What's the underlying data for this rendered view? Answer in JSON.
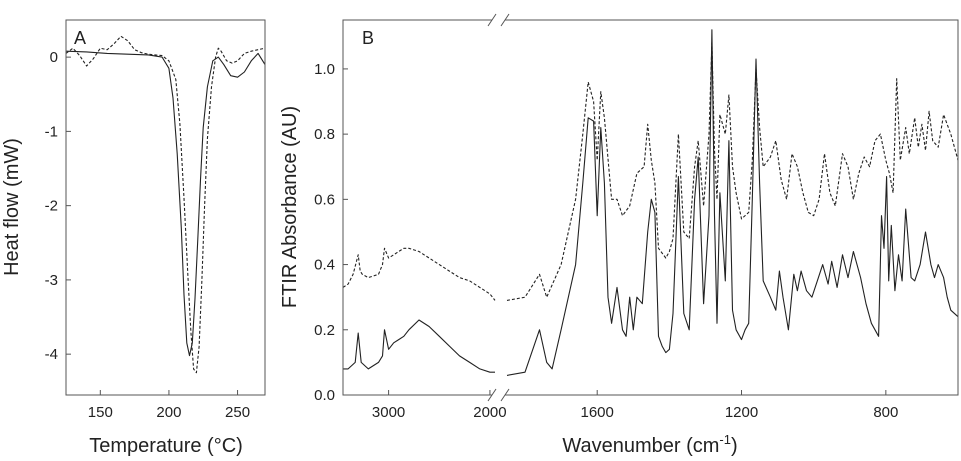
{
  "chart_data": [
    {
      "panel": "A",
      "type": "line",
      "xlabel": "Temperature (°C)",
      "ylabel": "Heat flow (mW)",
      "xlim": [
        125,
        270
      ],
      "ylim": [
        -4.55,
        0.5
      ],
      "xticks": [
        150,
        200,
        250
      ],
      "yticks": [
        0,
        -1,
        -2,
        -3,
        -4
      ],
      "grid": false,
      "series": [
        {
          "style": "solid",
          "x": [
            125,
            140,
            155,
            170,
            185,
            195,
            200,
            203,
            206,
            209,
            211,
            213,
            215,
            217,
            219,
            221,
            223,
            225,
            228,
            232,
            236,
            240,
            245,
            250,
            255,
            260,
            265,
            270
          ],
          "y": [
            0.08,
            0.07,
            0.05,
            0.04,
            0.03,
            0.0,
            -0.15,
            -0.55,
            -1.3,
            -2.3,
            -3.2,
            -3.85,
            -4.02,
            -3.85,
            -3.25,
            -2.45,
            -1.65,
            -0.95,
            -0.4,
            -0.05,
            0.0,
            -0.1,
            -0.25,
            -0.27,
            -0.2,
            -0.05,
            0.05,
            -0.1
          ]
        },
        {
          "style": "dashed",
          "x": [
            125,
            130,
            135,
            140,
            145,
            150,
            155,
            160,
            165,
            170,
            175,
            180,
            185,
            190,
            195,
            200,
            205,
            208,
            211,
            214,
            216,
            218,
            220,
            222,
            224,
            226,
            228,
            231,
            234,
            236,
            238,
            242,
            246,
            250,
            255,
            260,
            265,
            270
          ],
          "y": [
            0.05,
            0.12,
            0.02,
            -0.12,
            -0.02,
            0.12,
            0.1,
            0.18,
            0.28,
            0.22,
            0.1,
            0.06,
            0.04,
            0.03,
            0.02,
            -0.05,
            -0.3,
            -0.9,
            -1.9,
            -3.0,
            -3.7,
            -4.2,
            -4.25,
            -3.9,
            -3.0,
            -2.0,
            -1.1,
            -0.4,
            0.0,
            0.12,
            0.08,
            -0.05,
            -0.08,
            -0.05,
            0.05,
            0.08,
            0.1,
            0.12
          ]
        }
      ]
    },
    {
      "panel": "B",
      "type": "line",
      "xlabel": "Wavenumber (cm",
      "xlabel_superscript": "-1",
      "xlabel_suffix": ")",
      "ylabel": "FTIR Absorbance (AU)",
      "ylim": [
        0.0,
        1.15
      ],
      "yticks": [
        0.0,
        0.2,
        0.4,
        0.6,
        0.8,
        1.0
      ],
      "yticklabels": [
        "0.0",
        "0.2",
        "0.4",
        "0.6",
        "0.8",
        "1.0"
      ],
      "axis_break": "broken x-axis between 1950 and 1850 cm-1",
      "x_segments": [
        {
          "xlim": [
            3450,
            1950
          ],
          "xticks": [
            3000,
            2000
          ]
        },
        {
          "xlim": [
            1850,
            600
          ],
          "xticks": [
            1600,
            1200,
            800
          ]
        }
      ],
      "grid": false,
      "series": [
        {
          "style": "solid",
          "segments": [
            {
              "x": [
                3450,
                3400,
                3330,
                3300,
                3270,
                3200,
                3100,
                3060,
                3040,
                3000,
                2950,
                2900,
                2850,
                2800,
                2700,
                2600,
                2500,
                2400,
                2300,
                2200,
                2100,
                2000,
                1950
              ],
              "y": [
                0.08,
                0.08,
                0.1,
                0.19,
                0.1,
                0.08,
                0.1,
                0.12,
                0.2,
                0.14,
                0.16,
                0.17,
                0.18,
                0.2,
                0.23,
                0.21,
                0.18,
                0.15,
                0.12,
                0.1,
                0.08,
                0.07,
                0.07
              ]
            },
            {
              "x": [
                1850,
                1800,
                1760,
                1740,
                1725,
                1700,
                1660,
                1640,
                1625,
                1610,
                1600,
                1590,
                1580,
                1570,
                1560,
                1545,
                1530,
                1520,
                1510,
                1500,
                1490,
                1475,
                1460,
                1450,
                1440,
                1430,
                1420,
                1410,
                1400,
                1390,
                1375,
                1360,
                1345,
                1330,
                1320,
                1305,
                1290,
                1282,
                1275,
                1268,
                1260,
                1245,
                1235,
                1225,
                1215,
                1200,
                1190,
                1180,
                1170,
                1160,
                1150,
                1140,
                1120,
                1105,
                1095,
                1085,
                1070,
                1055,
                1045,
                1035,
                1020,
                1005,
                990,
                975,
                960,
                950,
                935,
                920,
                905,
                890,
                870,
                855,
                840,
                820,
                812,
                805,
                798,
                792,
                785,
                775,
                765,
                755,
                745,
                730,
                720,
                705,
                690,
                675,
                665,
                655,
                640,
                630,
                620,
                600
              ],
              "y": [
                0.06,
                0.07,
                0.2,
                0.1,
                0.08,
                0.2,
                0.4,
                0.65,
                0.85,
                0.84,
                0.55,
                0.82,
                0.65,
                0.3,
                0.22,
                0.33,
                0.2,
                0.18,
                0.3,
                0.2,
                0.3,
                0.28,
                0.5,
                0.6,
                0.56,
                0.18,
                0.15,
                0.13,
                0.14,
                0.25,
                0.67,
                0.25,
                0.2,
                0.6,
                0.73,
                0.28,
                0.55,
                1.12,
                0.55,
                0.22,
                0.62,
                0.35,
                0.78,
                0.26,
                0.2,
                0.17,
                0.2,
                0.22,
                0.6,
                1.03,
                0.65,
                0.35,
                0.3,
                0.26,
                0.38,
                0.3,
                0.2,
                0.37,
                0.32,
                0.38,
                0.32,
                0.3,
                0.35,
                0.4,
                0.34,
                0.41,
                0.33,
                0.43,
                0.36,
                0.44,
                0.36,
                0.28,
                0.22,
                0.18,
                0.55,
                0.45,
                0.67,
                0.35,
                0.52,
                0.32,
                0.43,
                0.35,
                0.57,
                0.36,
                0.35,
                0.4,
                0.5,
                0.4,
                0.36,
                0.4,
                0.36,
                0.3,
                0.26,
                0.24
              ]
            }
          ]
        },
        {
          "style": "dashed",
          "segments": [
            {
              "x": [
                3450,
                3400,
                3350,
                3300,
                3280,
                3260,
                3200,
                3100,
                3060,
                3040,
                3000,
                2950,
                2900,
                2850,
                2800,
                2700,
                2600,
                2500,
                2400,
                2300,
                2200,
                2100,
                2000,
                1950
              ],
              "y": [
                0.33,
                0.34,
                0.37,
                0.43,
                0.38,
                0.37,
                0.36,
                0.37,
                0.4,
                0.45,
                0.42,
                0.43,
                0.44,
                0.45,
                0.45,
                0.44,
                0.42,
                0.4,
                0.38,
                0.36,
                0.35,
                0.33,
                0.31,
                0.29
              ]
            },
            {
              "x": [
                1850,
                1800,
                1760,
                1740,
                1700,
                1660,
                1640,
                1625,
                1610,
                1600,
                1590,
                1580,
                1560,
                1545,
                1530,
                1510,
                1490,
                1470,
                1460,
                1450,
                1440,
                1430,
                1410,
                1400,
                1390,
                1375,
                1360,
                1345,
                1330,
                1320,
                1305,
                1290,
                1282,
                1275,
                1268,
                1260,
                1245,
                1235,
                1225,
                1215,
                1200,
                1180,
                1170,
                1160,
                1150,
                1140,
                1120,
                1105,
                1090,
                1075,
                1060,
                1045,
                1030,
                1015,
                1000,
                985,
                970,
                955,
                940,
                920,
                905,
                890,
                875,
                860,
                845,
                830,
                815,
                800,
                790,
                780,
                770,
                760,
                745,
                735,
                720,
                710,
                700,
                690,
                680,
                670,
                655,
                640,
                620,
                600
              ],
              "y": [
                0.29,
                0.3,
                0.37,
                0.3,
                0.4,
                0.6,
                0.8,
                0.96,
                0.9,
                0.72,
                0.93,
                0.85,
                0.6,
                0.6,
                0.55,
                0.58,
                0.68,
                0.7,
                0.83,
                0.72,
                0.65,
                0.45,
                0.42,
                0.44,
                0.48,
                0.8,
                0.5,
                0.48,
                0.7,
                0.78,
                0.58,
                0.8,
                1.08,
                0.75,
                0.6,
                0.86,
                0.8,
                0.92,
                0.7,
                0.62,
                0.54,
                0.56,
                0.72,
                1.0,
                0.82,
                0.7,
                0.73,
                0.78,
                0.66,
                0.6,
                0.74,
                0.7,
                0.62,
                0.56,
                0.55,
                0.6,
                0.74,
                0.62,
                0.58,
                0.74,
                0.7,
                0.6,
                0.68,
                0.73,
                0.7,
                0.78,
                0.8,
                0.72,
                0.68,
                0.62,
                0.97,
                0.72,
                0.82,
                0.74,
                0.85,
                0.76,
                0.83,
                0.75,
                0.87,
                0.78,
                0.76,
                0.86,
                0.8,
                0.72
              ]
            }
          ]
        }
      ]
    }
  ]
}
